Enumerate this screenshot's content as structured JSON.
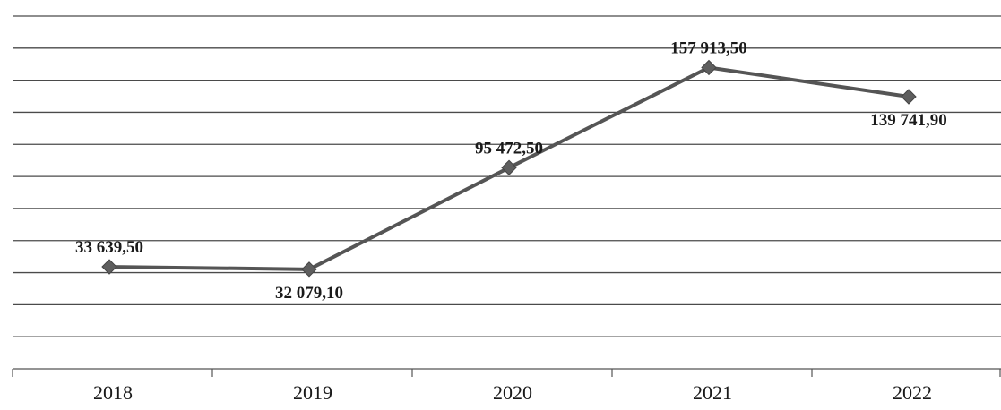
{
  "chart_data": {
    "type": "line",
    "categories": [
      "2018",
      "2019",
      "2020",
      "2021",
      "2022"
    ],
    "series": [
      {
        "values": [
          33639.5,
          32079.1,
          95472.5,
          157913.5,
          139741.9
        ],
        "value_labels": [
          "33 639,50",
          "32 079,10",
          "95 472,50",
          "157 913,50",
          "139 741,90"
        ],
        "color": "#555555"
      }
    ],
    "ylim": [
      -30000,
      190000
    ],
    "grid": true,
    "legend": "none"
  }
}
